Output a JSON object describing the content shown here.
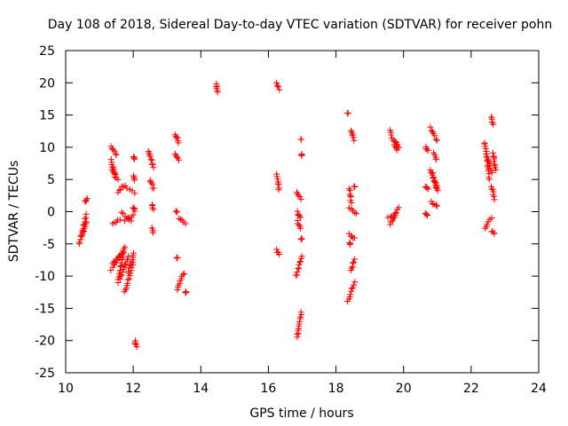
{
  "chart_data": {
    "type": "scatter",
    "title": "Day 108 of 2018, Sidereal Day-to-day VTEC variation (SDTVAR) for receiver pohn",
    "xlabel": "GPS time / hours",
    "ylabel": "SDTVAR / TECUs",
    "xlim": [
      10,
      24
    ],
    "ylim": [
      -25,
      25
    ],
    "x_ticks": [
      10,
      12,
      14,
      16,
      18,
      20,
      22,
      24
    ],
    "y_ticks": [
      -25,
      -20,
      -15,
      -10,
      -5,
      0,
      5,
      10,
      15,
      20,
      25
    ],
    "grid": false,
    "marker": "plus",
    "colors": {
      "points": "#ff0000",
      "axes": "#000000"
    },
    "segments": [
      {
        "x": [
          10.4,
          10.62
        ],
        "y": [
          -5.0,
          -1.5
        ]
      },
      {
        "x": [
          10.45,
          10.62
        ],
        "y": [
          -4.0,
          -0.5
        ]
      },
      {
        "x": [
          10.58,
          10.63
        ],
        "y": [
          1.5,
          2.0
        ]
      },
      {
        "x": [
          11.35,
          11.5
        ],
        "y": [
          10.2,
          8.8
        ]
      },
      {
        "x": [
          11.35,
          11.45
        ],
        "y": [
          8.0,
          5.5
        ]
      },
      {
        "x": [
          11.38,
          11.55
        ],
        "y": [
          6.5,
          5.0
        ]
      },
      {
        "x": [
          11.4,
          11.6
        ],
        "y": [
          -2.0,
          -1.2
        ]
      },
      {
        "x": [
          11.35,
          11.65
        ],
        "y": [
          -9.0,
          -6.5
        ]
      },
      {
        "x": [
          11.4,
          11.7
        ],
        "y": [
          -8.0,
          -6.0
        ]
      },
      {
        "x": [
          11.55,
          11.75
        ],
        "y": [
          -11.0,
          -5.5
        ]
      },
      {
        "x": [
          11.6,
          11.85
        ],
        "y": [
          -10.5,
          -7.0
        ]
      },
      {
        "x": [
          11.55,
          11.7
        ],
        "y": [
          3.0,
          4.0
        ]
      },
      {
        "x": [
          11.65,
          11.95
        ],
        "y": [
          0.0,
          -1.5
        ]
      },
      {
        "x": [
          11.75,
          12.0
        ],
        "y": [
          -1.5,
          -0.5
        ]
      },
      {
        "x": [
          11.75,
          12.05
        ],
        "y": [
          4.0,
          3.0
        ]
      },
      {
        "x": [
          11.75,
          12.0
        ],
        "y": [
          -12.5,
          -8.0
        ]
      },
      {
        "x": [
          11.85,
          12.02
        ],
        "y": [
          -9.5,
          -6.5
        ]
      },
      {
        "x": [
          12.0,
          12.05
        ],
        "y": [
          8.5,
          8.2
        ]
      },
      {
        "x": [
          12.0,
          12.05
        ],
        "y": [
          5.5,
          5.0
        ]
      },
      {
        "x": [
          12.0,
          12.05
        ],
        "y": [
          0.5,
          0.2
        ]
      },
      {
        "x": [
          12.05,
          12.1
        ],
        "y": [
          -20.0,
          -21.0
        ]
      },
      {
        "x": [
          12.45,
          12.6
        ],
        "y": [
          9.5,
          7.0
        ]
      },
      {
        "x": [
          12.5,
          12.6
        ],
        "y": [
          5.0,
          3.5
        ]
      },
      {
        "x": [
          12.55,
          12.6
        ],
        "y": [
          1.0,
          0.5
        ]
      },
      {
        "x": [
          12.55,
          12.6
        ],
        "y": [
          -2.5,
          -3.2
        ]
      },
      {
        "x": [
          13.25,
          13.35
        ],
        "y": [
          12.0,
          10.8
        ]
      },
      {
        "x": [
          13.25,
          13.35
        ],
        "y": [
          9.0,
          8.0
        ]
      },
      {
        "x": [
          13.25,
          13.3
        ],
        "y": [
          0.0,
          0.0
        ]
      },
      {
        "x": [
          13.35,
          13.55
        ],
        "y": [
          -1.0,
          -1.8
        ]
      },
      {
        "x": [
          13.3,
          13.3
        ],
        "y": [
          -7.2,
          -7.2
        ]
      },
      {
        "x": [
          13.3,
          13.5
        ],
        "y": [
          -12.0,
          -9.5
        ]
      },
      {
        "x": [
          13.55,
          13.55
        ],
        "y": [
          -12.5,
          -12.5
        ]
      },
      {
        "x": [
          14.45,
          14.5
        ],
        "y": [
          19.8,
          18.5
        ]
      },
      {
        "x": [
          16.25,
          16.32
        ],
        "y": [
          20.0,
          19.0
        ]
      },
      {
        "x": [
          16.25,
          16.32
        ],
        "y": [
          5.7,
          3.5
        ]
      },
      {
        "x": [
          16.25,
          16.32
        ],
        "y": [
          -6.0,
          -6.5
        ]
      },
      {
        "x": [
          16.85,
          16.95
        ],
        "y": [
          3.0,
          2.0
        ]
      },
      {
        "x": [
          16.85,
          16.95
        ],
        "y": [
          0.0,
          -1.0
        ]
      },
      {
        "x": [
          16.85,
          16.95
        ],
        "y": [
          -1.5,
          -2.5
        ]
      },
      {
        "x": [
          16.82,
          16.98
        ],
        "y": [
          -10.0,
          -7.0
        ]
      },
      {
        "x": [
          16.85,
          16.98
        ],
        "y": [
          -19.5,
          -15.5
        ]
      },
      {
        "x": [
          16.98,
          16.98
        ],
        "y": [
          11.2,
          11.2
        ]
      },
      {
        "x": [
          16.98,
          16.98
        ],
        "y": [
          8.8,
          8.8
        ]
      },
      {
        "x": [
          16.98,
          16.98
        ],
        "y": [
          -4.2,
          -4.2
        ]
      },
      {
        "x": [
          18.35,
          18.35
        ],
        "y": [
          15.2,
          15.2
        ]
      },
      {
        "x": [
          18.45,
          18.52
        ],
        "y": [
          12.5,
          11.2
        ]
      },
      {
        "x": [
          18.4,
          18.45
        ],
        "y": [
          3.5,
          1.5
        ]
      },
      {
        "x": [
          18.4,
          18.6
        ],
        "y": [
          0.5,
          -0.2
        ]
      },
      {
        "x": [
          18.4,
          18.55
        ],
        "y": [
          -3.5,
          -4.2
        ]
      },
      {
        "x": [
          18.4,
          18.42
        ],
        "y": [
          -4.8,
          -5.0
        ]
      },
      {
        "x": [
          18.45,
          18.55
        ],
        "y": [
          -9.0,
          -7.5
        ]
      },
      {
        "x": [
          18.35,
          18.55
        ],
        "y": [
          -13.8,
          -11.0
        ]
      },
      {
        "x": [
          18.55,
          18.55
        ],
        "y": [
          3.8,
          3.8
        ]
      },
      {
        "x": [
          19.6,
          19.8
        ],
        "y": [
          12.5,
          9.5
        ]
      },
      {
        "x": [
          19.75,
          19.85
        ],
        "y": [
          11.0,
          10.0
        ]
      },
      {
        "x": [
          19.6,
          19.85
        ],
        "y": [
          -2.0,
          0.5
        ]
      },
      {
        "x": [
          19.55,
          19.75
        ],
        "y": [
          -1.0,
          -0.2
        ]
      },
      {
        "x": [
          20.65,
          20.72
        ],
        "y": [
          10.0,
          9.5
        ]
      },
      {
        "x": [
          20.65,
          20.72
        ],
        "y": [
          4.0,
          3.5
        ]
      },
      {
        "x": [
          20.65,
          20.72
        ],
        "y": [
          -0.2,
          -0.5
        ]
      },
      {
        "x": [
          20.8,
          20.98
        ],
        "y": [
          13.0,
          11.0
        ]
      },
      {
        "x": [
          20.9,
          20.98
        ],
        "y": [
          9.0,
          8.0
        ]
      },
      {
        "x": [
          20.8,
          21.0
        ],
        "y": [
          6.5,
          3.5
        ]
      },
      {
        "x": [
          20.85,
          21.0
        ],
        "y": [
          6.0,
          3.2
        ]
      },
      {
        "x": [
          20.82,
          21.0
        ],
        "y": [
          1.5,
          0.8
        ]
      },
      {
        "x": [
          22.4,
          22.55
        ],
        "y": [
          10.8,
          5.0
        ]
      },
      {
        "x": [
          22.45,
          22.6
        ],
        "y": [
          9.0,
          6.0
        ]
      },
      {
        "x": [
          22.6,
          22.65
        ],
        "y": [
          14.8,
          13.5
        ]
      },
      {
        "x": [
          22.65,
          22.72
        ],
        "y": [
          9.0,
          6.5
        ]
      },
      {
        "x": [
          22.6,
          22.7
        ],
        "y": [
          4.0,
          2.0
        ]
      },
      {
        "x": [
          22.4,
          22.6
        ],
        "y": [
          -2.5,
          -1.0
        ]
      },
      {
        "x": [
          22.6,
          22.7
        ],
        "y": [
          -3.0,
          -3.5
        ]
      }
    ]
  }
}
